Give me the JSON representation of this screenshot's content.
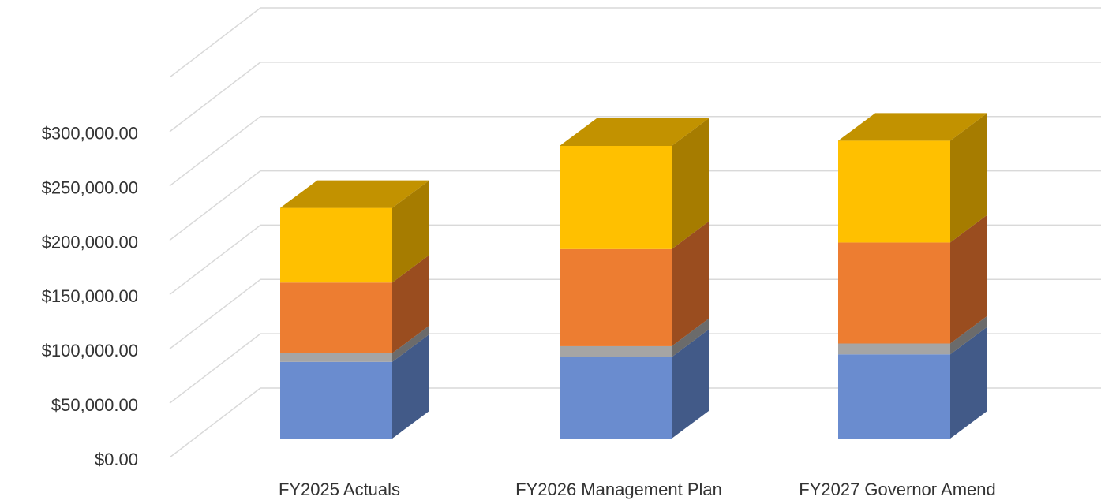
{
  "chart_data": {
    "type": "bar3d_stacked",
    "categories": [
      "FY2025 Actuals",
      "FY2026 Management Plan",
      "FY2027 Governor Amend"
    ],
    "series": [
      {
        "color": "#6a8ccf",
        "side_color": "#425a88",
        "values": [
          70600,
          75000,
          77500
        ]
      },
      {
        "color": "#a5a5a5",
        "side_color": "#6b6b6b",
        "values": [
          8000,
          10000,
          10000
        ]
      },
      {
        "color": "#ed7d31",
        "side_color": "#9a4d1f",
        "values": [
          65000,
          89400,
          93000
        ]
      },
      {
        "color": "#ffc000",
        "side_color": "#a67c00",
        "top_color": "#c29200",
        "values": [
          68750,
          95000,
          93750
        ]
      }
    ],
    "ylim": [
      0,
      350000
    ],
    "yticks": [
      {
        "value": 0,
        "label": "$0.00"
      },
      {
        "value": 50000,
        "label": "$50,000.00"
      },
      {
        "value": 100000,
        "label": "$100,000.00"
      },
      {
        "value": 150000,
        "label": "$150,000.00"
      },
      {
        "value": 200000,
        "label": "$200,000.00"
      },
      {
        "value": 250000,
        "label": "$250,000.00"
      },
      {
        "value": 300000,
        "label": "$300,000.00"
      }
    ],
    "grid": true
  }
}
